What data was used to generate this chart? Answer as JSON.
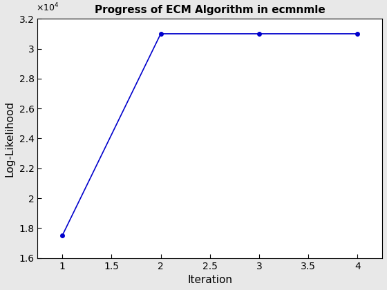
{
  "title": "Progress of ECM Algorithm in ecmnmle",
  "xlabel": "Iteration",
  "ylabel": "Log-Likelihood",
  "x": [
    1,
    2,
    3,
    4
  ],
  "y": [
    17500,
    31000,
    31000,
    31000
  ],
  "line_color": "#0000cc",
  "marker": "o",
  "marker_size": 4,
  "xlim": [
    0.75,
    4.25
  ],
  "ylim": [
    16000,
    32000
  ],
  "yticks": [
    16000,
    18000,
    20000,
    22000,
    24000,
    26000,
    28000,
    30000,
    32000
  ],
  "ytick_labels": [
    "1.6",
    "1.8",
    "2",
    "2.2",
    "2.4",
    "2.6",
    "2.8",
    "3",
    "3.2"
  ],
  "xticks": [
    1,
    1.5,
    2,
    2.5,
    3,
    3.5,
    4
  ],
  "xtick_labels": [
    "1",
    "1.5",
    "2",
    "2.5",
    "3",
    "3.5",
    "4"
  ],
  "background_color": "#e8e8e8",
  "axes_facecolor": "#ffffff",
  "title_fontsize": 11,
  "label_fontsize": 11,
  "tick_fontsize": 10,
  "exponent_fontsize": 9
}
